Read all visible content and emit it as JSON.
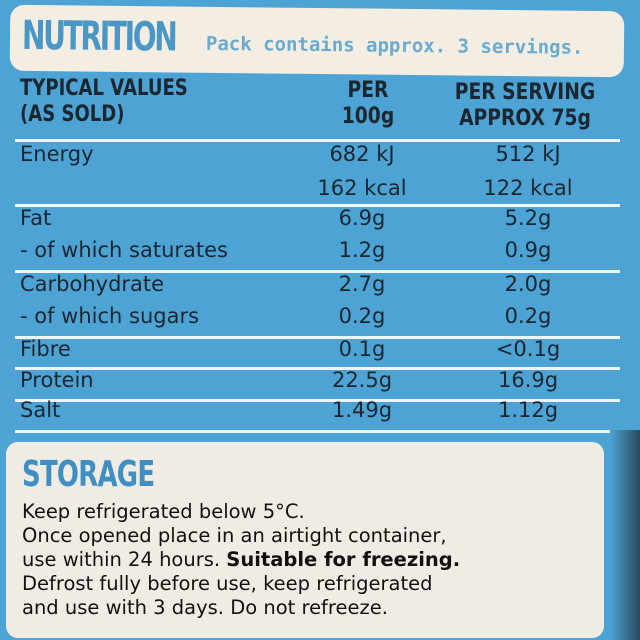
{
  "header": {
    "title": "NUTRITION",
    "subtitle": "Pack contains approx. 3 servings."
  },
  "columns": {
    "c1": [
      "TYPICAL VALUES",
      "(AS SOLD)"
    ],
    "c2": [
      "PER",
      "100g"
    ],
    "c3": [
      "PER SERVING",
      "APPROX 75g"
    ]
  },
  "rows": [
    {
      "name": "Energy",
      "per100": "682 kJ",
      "perServing": "512 kJ"
    },
    {
      "name": "",
      "per100": "162 kcal",
      "perServing": "122 kcal"
    },
    {
      "name": "Fat",
      "per100": "6.9g",
      "perServing": "5.2g"
    },
    {
      "name": "- of which saturates",
      "per100": "1.2g",
      "perServing": "0.9g"
    },
    {
      "name": "Carbohydrate",
      "per100": "2.7g",
      "perServing": "2.0g"
    },
    {
      "name": "- of which sugars",
      "per100": "0.2g",
      "perServing": "0.2g"
    },
    {
      "name": "Fibre",
      "per100": "0.1g",
      "perServing": "<0.1g"
    },
    {
      "name": "Protein",
      "per100": "22.5g",
      "perServing": "16.9g"
    },
    {
      "name": "Salt",
      "per100": "1.49g",
      "perServing": "1.12g"
    }
  ],
  "storage": {
    "title": "STORAGE",
    "line1": "Keep refrigerated below 5°C.",
    "line2": "Once opened place in an airtight container,",
    "line3a": "use within 24 hours. ",
    "line3b": "Suitable for freezing.",
    "line4": "Defrost fully before use, keep refrigerated",
    "line5": "and use with 3 days. Do not refreeze."
  },
  "colors": {
    "background": "#4da3d4",
    "panel": "#f3ede2",
    "accent": "#4a97c6"
  }
}
